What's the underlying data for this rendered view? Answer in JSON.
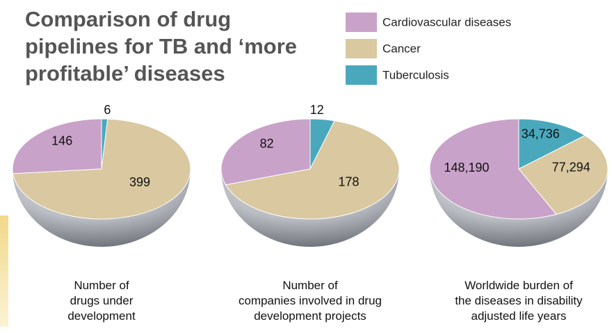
{
  "title": "Comparison of drug pipelines for TB and ‘more profitable’ diseases",
  "chart_data": [
    {
      "type": "pie",
      "caption": [
        "Number of",
        "drugs under",
        "development"
      ],
      "categories": [
        "Tuberculosis",
        "Cancer",
        "Cardiovascular diseases"
      ],
      "values": [
        6,
        399,
        146
      ],
      "colors": [
        "#4aa8bd",
        "#d9c8a0",
        "#c9a2c9"
      ]
    },
    {
      "type": "pie",
      "caption": [
        "Number of",
        "companies involved in drug",
        "development projects"
      ],
      "categories": [
        "Tuberculosis",
        "Cancer",
        "Cardiovascular diseases"
      ],
      "values": [
        12,
        178,
        82
      ],
      "colors": [
        "#4aa8bd",
        "#d9c8a0",
        "#c9a2c9"
      ]
    },
    {
      "type": "pie",
      "caption": [
        "Worldwide burden of",
        "the diseases in disability",
        "adjusted life years"
      ],
      "categories": [
        "Tuberculosis",
        "Cancer",
        "Cardiovascular diseases"
      ],
      "values": [
        34736,
        77294,
        148190
      ],
      "value_labels": [
        "34,736",
        "77,294",
        "148,190"
      ],
      "colors": [
        "#4aa8bd",
        "#d9c8a0",
        "#c9a2c9"
      ]
    }
  ]
}
